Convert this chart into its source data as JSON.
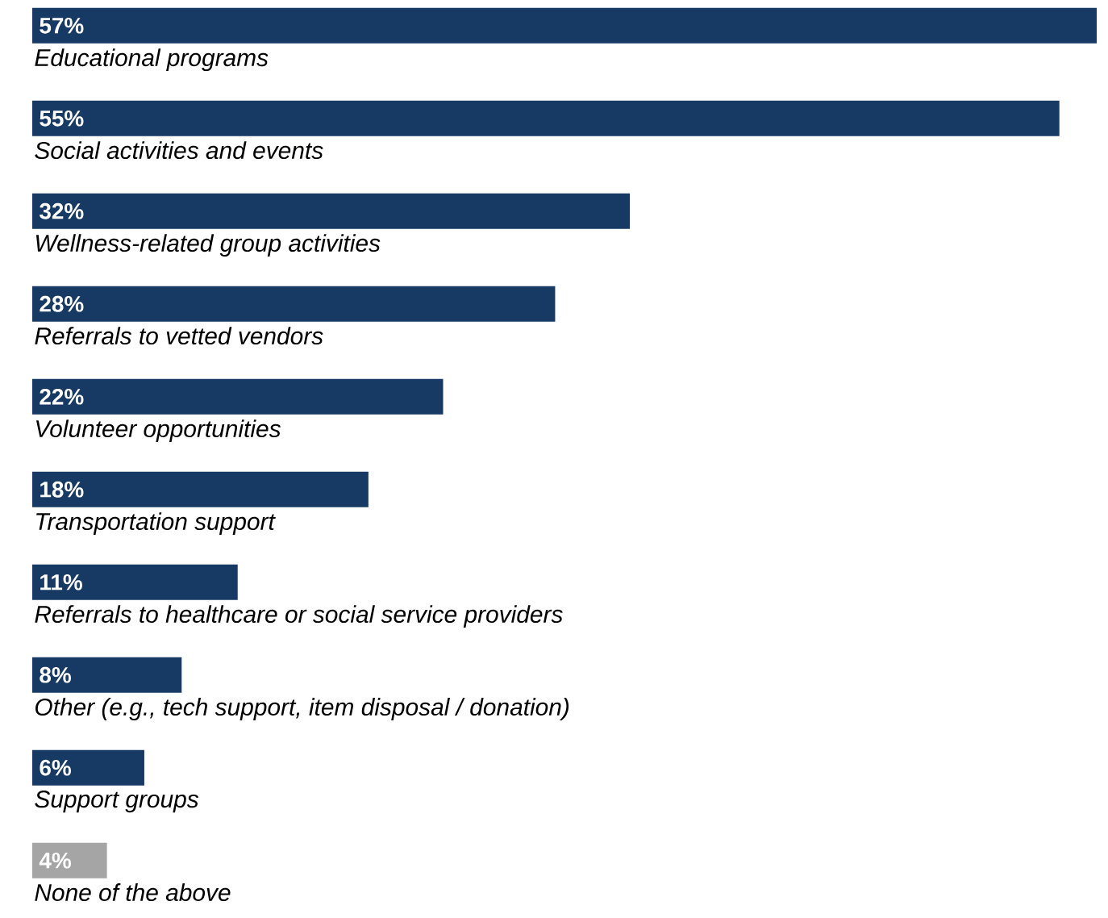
{
  "chart_data": {
    "type": "bar",
    "orientation": "horizontal",
    "categories": [
      "Educational programs",
      "Social activities and events",
      "Wellness-related group activities",
      "Referrals to vetted vendors",
      "Volunteer opportunities",
      "Transportation support",
      "Referrals to healthcare or social service providers",
      "Other (e.g., tech support, item disposal / donation)",
      "Support groups",
      "None of the above"
    ],
    "values": [
      57,
      55,
      32,
      28,
      22,
      18,
      11,
      8,
      6,
      4
    ],
    "value_labels": [
      "57%",
      "55%",
      "32%",
      "28%",
      "22%",
      "18%",
      "11%",
      "8%",
      "6%",
      "4%"
    ],
    "colors": [
      "#173a64",
      "#173a64",
      "#173a64",
      "#173a64",
      "#173a64",
      "#173a64",
      "#173a64",
      "#173a64",
      "#173a64",
      "#a5a5a5"
    ]
  }
}
